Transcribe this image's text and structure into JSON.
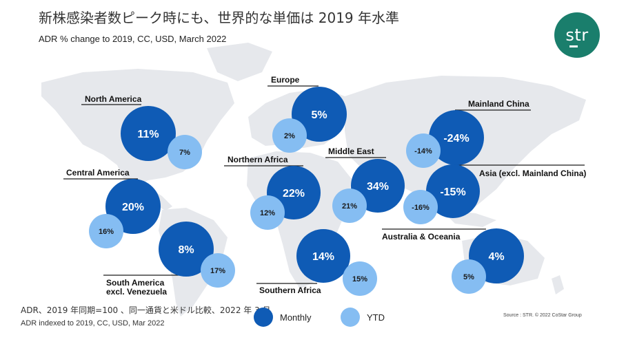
{
  "header": {
    "title": "新株感染者数ピーク時にも、世界的な単価は 2019 年水準",
    "subtitle": "ADR % change to 2019, CC, USD, March 2022"
  },
  "logo": {
    "text": "str",
    "color": "#1a7e6c"
  },
  "colors": {
    "monthly": "#0f5bb5",
    "ytd": "#85bdf2",
    "map": "#e6e8ec",
    "line": "#1a1a1a"
  },
  "legend": {
    "monthly": "Monthly",
    "ytd": "YTD"
  },
  "footer": {
    "note_jp": "ADR、2019 年同期=100 、同一通貨と米ドル比較、2022 年 3 月",
    "note_en": "ADR indexed to 2019, CC, USD, Mar  2022",
    "source": "Source : STR. © 2022 CoStar Group"
  },
  "chart_data": {
    "type": "bubble-map",
    "unit": "%",
    "series": [
      {
        "name": "Monthly",
        "color": "#0f5bb5"
      },
      {
        "name": "YTD",
        "color": "#85bdf2"
      }
    ],
    "regions": [
      {
        "name": "North America",
        "monthly": 11,
        "ytd": 7
      },
      {
        "name": "Central America",
        "monthly": 20,
        "ytd": 16
      },
      {
        "name": "South America excl. Venezuela",
        "monthly": 8,
        "ytd": 17
      },
      {
        "name": "Europe",
        "monthly": 5,
        "ytd": 2
      },
      {
        "name": "Northern Africa",
        "monthly": 22,
        "ytd": 12
      },
      {
        "name": "Southern Africa",
        "monthly": 14,
        "ytd": 15
      },
      {
        "name": "Middle East",
        "monthly": 34,
        "ytd": 21
      },
      {
        "name": "Mainland China",
        "monthly": -24,
        "ytd": -14
      },
      {
        "name": "Asia (excl. Mainland China)",
        "monthly": -15,
        "ytd": -16
      },
      {
        "name": "Australia & Oceania",
        "monthly": 4,
        "ytd": 5
      }
    ]
  }
}
